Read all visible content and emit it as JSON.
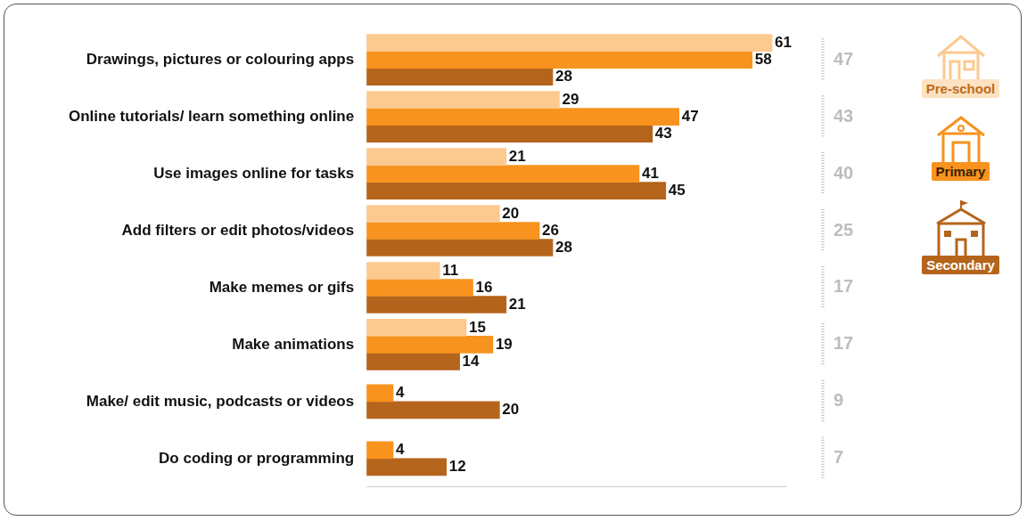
{
  "chart_data": {
    "type": "bar",
    "orientation": "horizontal",
    "categories": [
      "Drawings, pictures or colouring apps",
      "Online tutorials/ learn something online",
      "Use images online for tasks",
      "Add filters or edit photos/videos",
      "Make memes or gifs",
      "Make animations",
      "Make/ edit music, podcasts or videos",
      "Do coding or programming"
    ],
    "series": [
      {
        "name": "Pre-school",
        "color": "#fcc98f",
        "values": [
          61,
          29,
          21,
          20,
          11,
          15,
          null,
          null
        ]
      },
      {
        "name": "Primary",
        "color": "#f7931e",
        "values": [
          58,
          47,
          41,
          26,
          16,
          19,
          4,
          4
        ]
      },
      {
        "name": "Secondary",
        "color": "#b5641c",
        "values": [
          28,
          43,
          45,
          28,
          21,
          14,
          20,
          12
        ]
      }
    ],
    "totals": [
      47,
      43,
      40,
      25,
      17,
      17,
      9,
      7
    ],
    "xlim": [
      0,
      63
    ],
    "xticks": [],
    "grid": false,
    "data_labels": true,
    "tick_labels": "y",
    "legend": "right"
  }
}
